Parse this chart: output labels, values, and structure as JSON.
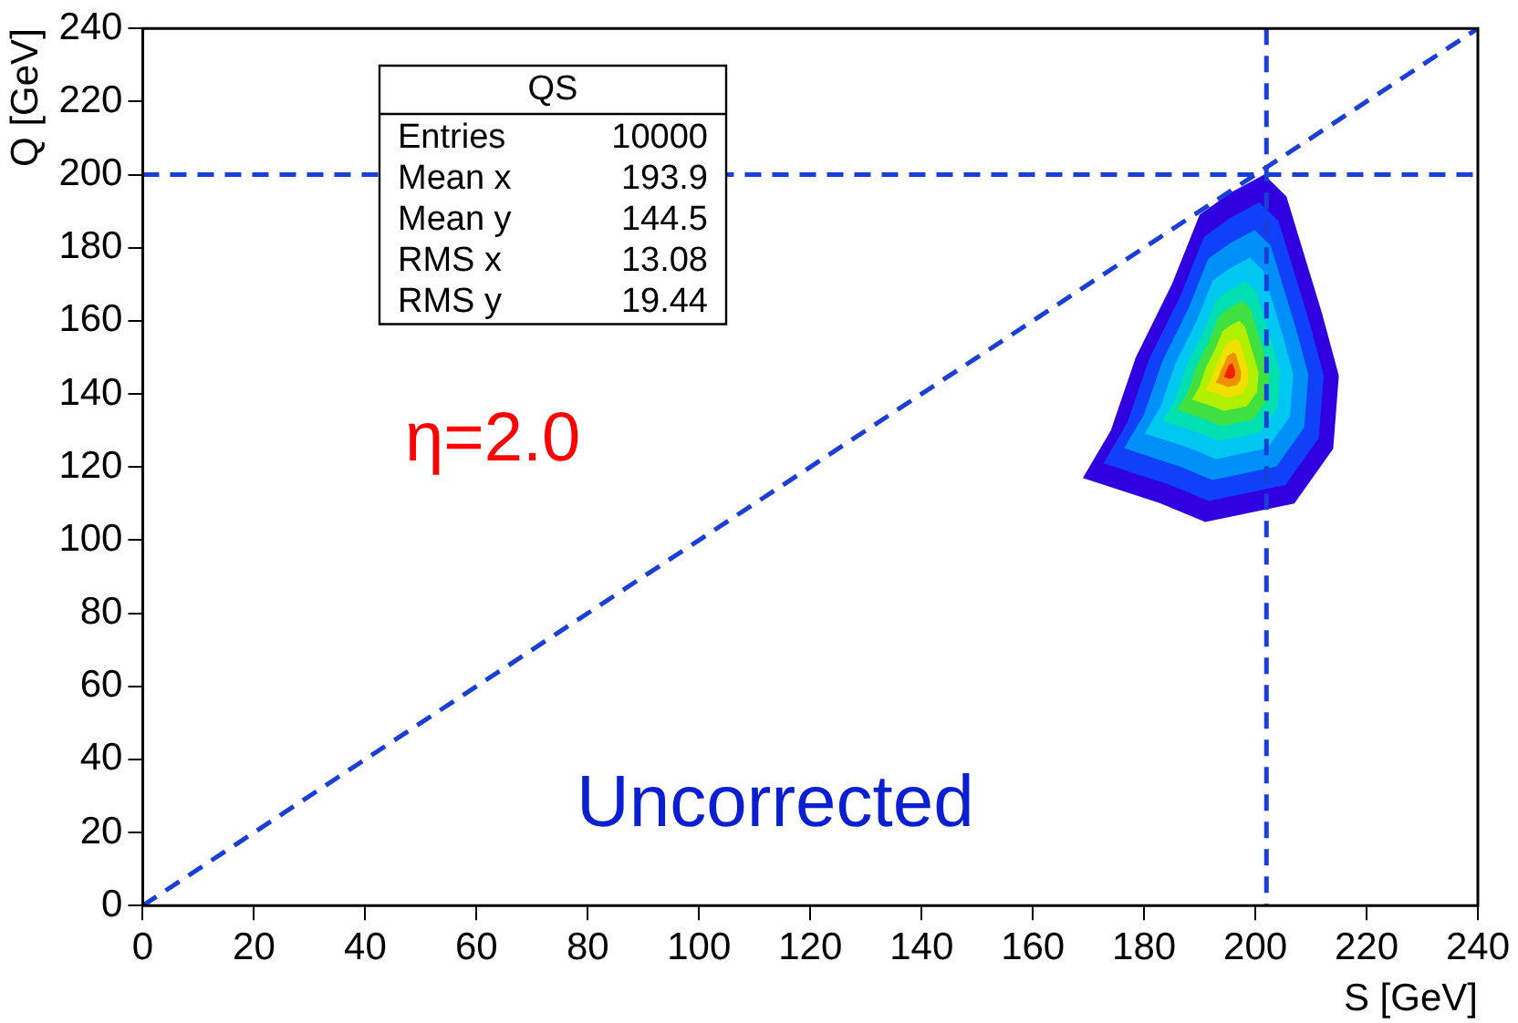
{
  "chart_data": {
    "type": "line",
    "xlabel": "S [GeV]",
    "ylabel": "Q [GeV]",
    "xlim": [
      0,
      240
    ],
    "ylim": [
      0,
      240
    ],
    "xticks": [
      0,
      20,
      40,
      60,
      80,
      100,
      120,
      140,
      160,
      180,
      200,
      220,
      240
    ],
    "yticks": [
      0,
      20,
      40,
      60,
      80,
      100,
      120,
      140,
      160,
      180,
      200,
      220,
      240
    ],
    "series": [
      {
        "color": "#1a3fd6",
        "x": [
          0,
          240
        ],
        "values": [
          0,
          240
        ],
        "line_style": "dashed",
        "marker": "none"
      }
    ],
    "ref_lines": [
      {
        "axis": "x",
        "value": 202,
        "color": "#1a3fd6",
        "line_style": "dashed"
      },
      {
        "axis": "y",
        "value": 200,
        "color": "#1a3fd6",
        "line_style": "dashed"
      }
    ],
    "annotations": [
      "QS",
      "Entries 10000",
      "Mean x 193.9",
      "Mean y 144.5",
      "RMS x 13.08",
      "RMS y 19.44",
      "η=2.0",
      "Uncorrected"
    ]
  }
}
